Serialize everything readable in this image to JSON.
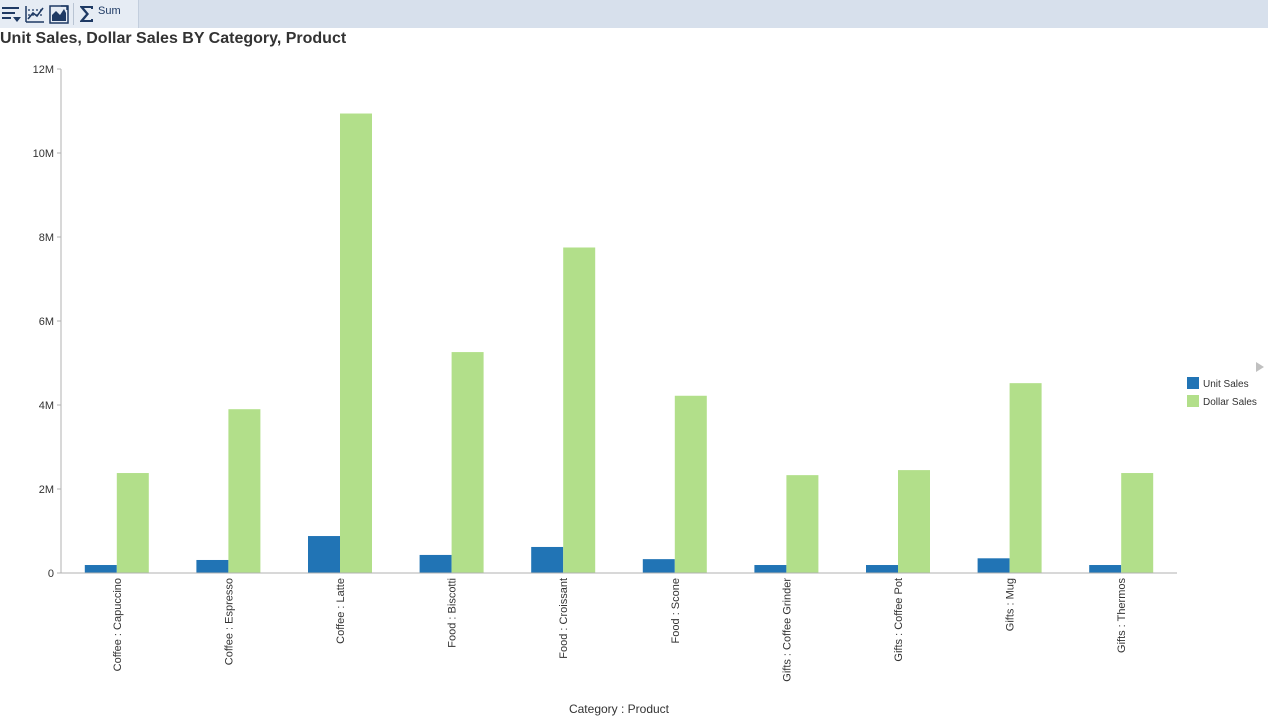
{
  "toolbar": {
    "buttons": [
      {
        "icon": "sort-icon"
      },
      {
        "icon": "chart-options-icon"
      },
      {
        "icon": "chart-type-icon"
      },
      {
        "icon": "sigma-icon",
        "label": "Sum"
      }
    ]
  },
  "legend_scroll_icon": "triangle-right-icon",
  "chart_data": {
    "type": "bar",
    "title": "Unit Sales, Dollar Sales BY Category, Product",
    "xlabel": "Category : Product",
    "ylabel": "",
    "ylim": [
      0,
      12000000
    ],
    "yticks": [
      0,
      2000000,
      4000000,
      6000000,
      8000000,
      10000000,
      12000000
    ],
    "ytick_labels": [
      "0",
      "2M",
      "4M",
      "6M",
      "8M",
      "10M",
      "12M"
    ],
    "grid": false,
    "legend_position": "right",
    "categories": [
      "Coffee : Capuccino",
      "Coffee : Espresso",
      "Coffee : Latte",
      "Food : Biscotti",
      "Food : Croissant",
      "Food : Scone",
      "Gifts : Coffee Grinder",
      "Gifts : Coffee Pot",
      "Gifts : Mug",
      "Gifts : Thermos"
    ],
    "series": [
      {
        "name": "Unit Sales",
        "color": "#2174b5",
        "values": [
          190000,
          310000,
          880000,
          430000,
          620000,
          330000,
          190000,
          190000,
          350000,
          190000
        ]
      },
      {
        "name": "Dollar Sales",
        "color": "#b2df8a",
        "values": [
          2380000,
          3900000,
          10940000,
          5260000,
          7750000,
          4220000,
          2330000,
          2450000,
          4520000,
          2380000
        ]
      }
    ]
  }
}
